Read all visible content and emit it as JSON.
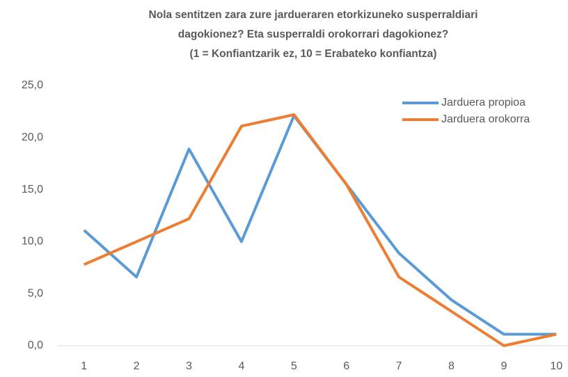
{
  "chart_data": {
    "type": "line",
    "title": [
      "Nola sentitzen zara zure jardueraren etorkizuneko susperraldiari",
      "dagokionez? Eta susperraldi orokorrari dagokionez?",
      "(1 = Konfiantzarik ez, 10 = Erabateko konfiantza)"
    ],
    "categories": [
      "1",
      "2",
      "3",
      "4",
      "5",
      "6",
      "7",
      "8",
      "9",
      "10"
    ],
    "series": [
      {
        "name": "Jarduera propioa",
        "color": "#5b9bd5",
        "values": [
          11.1,
          6.6,
          18.9,
          10.0,
          22.1,
          15.5,
          8.9,
          4.4,
          1.1,
          1.1
        ]
      },
      {
        "name": "Jarduera orokorra",
        "color": "#ed7d31",
        "values": [
          7.8,
          10.0,
          12.2,
          21.1,
          22.2,
          15.5,
          6.6,
          3.3,
          0.0,
          1.1
        ]
      }
    ],
    "ylim": [
      0,
      25
    ],
    "yticks": [
      {
        "value": 0,
        "label": "0,0"
      },
      {
        "value": 5,
        "label": "5,0"
      },
      {
        "value": 10,
        "label": "10,0"
      },
      {
        "value": 15,
        "label": "15,0"
      },
      {
        "value": 20,
        "label": "20,0"
      },
      {
        "value": 25,
        "label": "25,0"
      }
    ],
    "legend": "top-right"
  }
}
